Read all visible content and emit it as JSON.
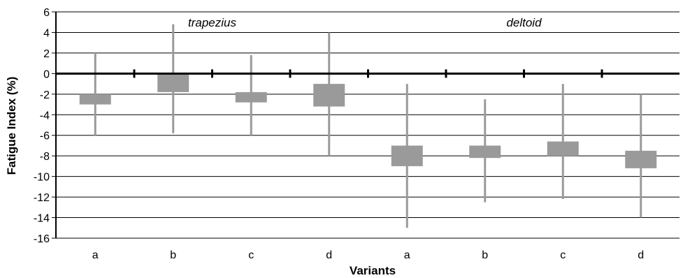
{
  "chart_data": {
    "type": "boxplot",
    "xlabel": "Variants",
    "ylabel": "Fatigue Index (%)",
    "ylim": [
      -16,
      6
    ],
    "yticks": [
      6,
      4,
      2,
      0,
      -2,
      -4,
      -6,
      -8,
      -10,
      -12,
      -14,
      -16
    ],
    "grid": true,
    "groups": [
      {
        "label": "trapezius",
        "span": [
          0,
          3
        ]
      },
      {
        "label": "deltoid",
        "span": [
          4,
          7
        ]
      }
    ],
    "categories": [
      "a",
      "b",
      "c",
      "d",
      "a",
      "b",
      "c",
      "d"
    ],
    "boxes": [
      {
        "whisker_low": -6.0,
        "q1": -3.0,
        "q3": -2.0,
        "whisker_high": 2.0
      },
      {
        "whisker_low": -5.8,
        "q1": -1.8,
        "q3": 0.0,
        "whisker_high": 4.8
      },
      {
        "whisker_low": -6.0,
        "q1": -2.8,
        "q3": -1.8,
        "whisker_high": 1.8
      },
      {
        "whisker_low": -8.0,
        "q1": -3.2,
        "q3": -1.0,
        "whisker_high": 4.0
      },
      {
        "whisker_low": -15.0,
        "q1": -9.0,
        "q3": -7.0,
        "whisker_high": -1.0
      },
      {
        "whisker_low": -12.5,
        "q1": -8.2,
        "q3": -7.0,
        "whisker_high": -2.5
      },
      {
        "whisker_low": -12.2,
        "q1": -8.0,
        "q3": -6.6,
        "whisker_high": -1.0
      },
      {
        "whisker_low": -14.0,
        "q1": -9.2,
        "q3": -7.5,
        "whisker_high": -2.0
      }
    ],
    "colors": {
      "box": "#9a9a9a",
      "whisker": "#9a9a9a",
      "grid": "#000000"
    }
  }
}
